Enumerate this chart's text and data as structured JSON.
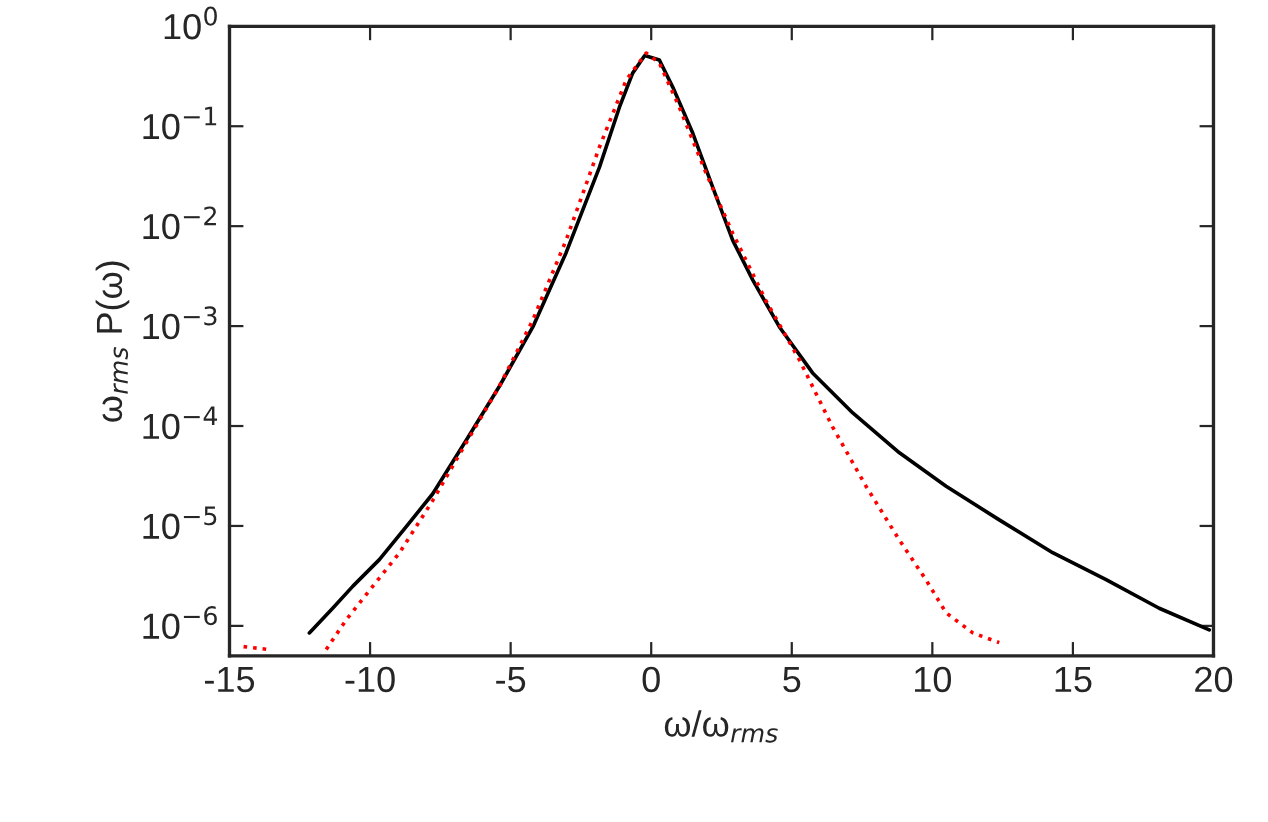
{
  "chart_data": {
    "type": "line",
    "xlabel": "ω/ω$_{rms}$",
    "ylabel": "ω$_{rms}$ P(ω)",
    "log": "y",
    "xlim": [
      -15,
      20
    ],
    "xticks": [
      -15,
      -10,
      -5,
      0,
      5,
      10,
      15,
      20
    ],
    "ylim": [
      5e-07,
      1
    ],
    "yticks": [
      {
        "value": 1e-06,
        "label": "10$^{−6}$"
      },
      {
        "value": 1e-05,
        "label": "10$^{−5}$"
      },
      {
        "value": 0.0001,
        "label": "10$^{−4}$"
      },
      {
        "value": 0.001,
        "label": "10$^{−3}$"
      },
      {
        "value": 0.01,
        "label": "10$^{−2}$"
      },
      {
        "value": 0.1,
        "label": "10$^{−1}$"
      },
      {
        "value": 1,
        "label": "10$^{0}$"
      }
    ],
    "grid": false,
    "series": [
      {
        "color": "#000000",
        "line_style": "solid",
        "x": [
          -12.16,
          -11.33,
          -10.61,
          -9.67,
          -8.72,
          -7.77,
          -6.58,
          -5.4,
          -4.21,
          -3.03,
          -1.84,
          -1.13,
          -0.66,
          -0.23,
          0.29,
          0.77,
          1.48,
          2.19,
          2.9,
          3.61,
          4.56,
          5.74,
          7.17,
          8.83,
          10.49,
          12.38,
          14.28,
          16.18,
          18.07,
          19.85
        ],
        "values": [
          8.5e-07,
          1.5e-06,
          2.5e-06,
          4.6e-06,
          9.8e-06,
          2.1e-05,
          7.2e-05,
          0.00025,
          0.00098,
          0.0054,
          0.039,
          0.155,
          0.34,
          0.51,
          0.46,
          0.245,
          0.085,
          0.0245,
          0.0072,
          0.0029,
          0.00098,
          0.00034,
          0.000135,
          5.4e-05,
          2.5e-05,
          1.15e-05,
          5.4e-06,
          2.9e-06,
          1.5e-06,
          9.1e-07
        ]
      },
      {
        "color": "#ff0000",
        "line_style": "dotted",
        "x": [
          -14.5,
          -13.6,
          -13.0,
          -11.56,
          -10.85,
          -9.9,
          -8.95,
          -7.77,
          -6.58,
          -5.4,
          -4.21,
          -3.03,
          -1.84,
          -0.89,
          -0.18,
          0.29,
          1.0,
          1.95,
          2.9,
          4.08,
          5.27,
          6.45,
          7.64,
          8.83,
          9.77,
          10.49,
          11.44,
          12.38
        ],
        "values": [
          6.2e-07,
          5.8e-07,
          null,
          5.8e-07,
          1.15e-06,
          2.5e-06,
          5.4e-06,
          1.8e-05,
          6.8e-05,
          0.00025,
          0.00115,
          0.0072,
          0.062,
          0.29,
          0.54,
          0.43,
          0.155,
          0.034,
          0.0085,
          0.0018,
          0.00046,
          9.8e-05,
          2.5e-05,
          7.2e-06,
          2.9e-06,
          1.35e-06,
          8.5e-07,
          6.8e-07
        ]
      }
    ]
  }
}
